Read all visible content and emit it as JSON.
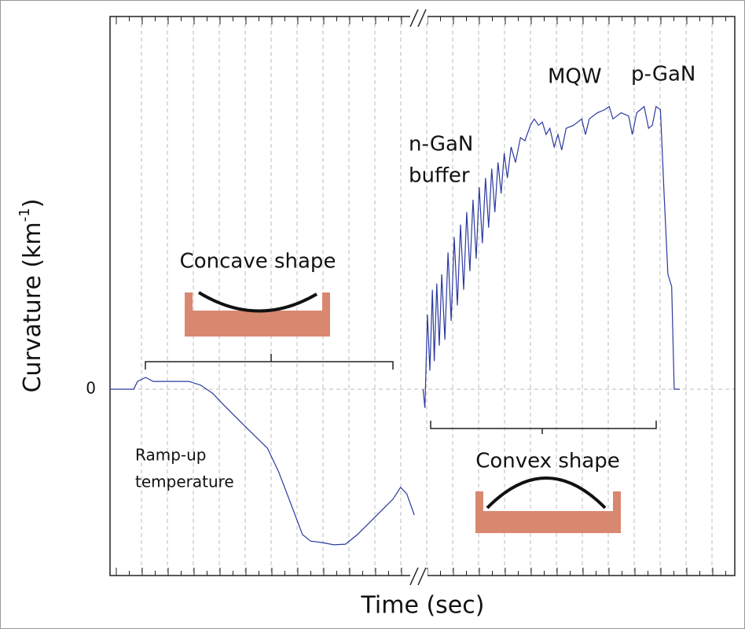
{
  "chart_data": {
    "type": "line",
    "xlabel": "Time (sec)",
    "ylabel": [
      "Curvature (km",
      "-1",
      ")"
    ],
    "xlim": [
      0,
      100
    ],
    "ylim": [
      -0.6,
      1.2
    ],
    "yticks": [
      0
    ],
    "grid": true,
    "series": [
      {
        "color": "#2b3a9e",
        "x": [
          0,
          3.8,
          4.4,
          5.7,
          6.9,
          8.8,
          10.7,
          12.6,
          14.5,
          16.4,
          18.2,
          20.1,
          22.6,
          25.2,
          27,
          28.9,
          30.8,
          32.1,
          34,
          35.8,
          37.7,
          39.6,
          41.5,
          43.4,
          45.3,
          46.5,
          47.5,
          48.7
        ],
        "values": [
          0,
          0,
          0.025,
          0.038,
          0.025,
          0.025,
          0.025,
          0.025,
          0.013,
          -0.013,
          -0.051,
          -0.089,
          -0.139,
          -0.19,
          -0.266,
          -0.367,
          -0.468,
          -0.489,
          -0.494,
          -0.501,
          -0.499,
          -0.468,
          -0.43,
          -0.392,
          -0.354,
          -0.316,
          -0.337,
          -0.405
        ]
      },
      {
        "color": "#2b3a9e",
        "x": [
          50.1,
          50.4,
          50.8,
          51.2,
          51.6,
          51.9,
          52.3,
          52.7,
          53.1,
          53.6,
          54.1,
          54.6,
          55.1,
          55.6,
          56.1,
          56.6,
          57.1,
          57.6,
          58.1,
          58.6,
          59.1,
          59.6,
          60.1,
          60.6,
          61.1,
          61.6,
          62.1,
          62.6,
          63.1,
          63.6,
          64.2,
          64.9,
          65.7,
          66.4,
          67.3,
          67.9,
          68.6,
          69.2,
          69.8,
          70.4,
          71.1,
          71.7,
          72.3,
          73.0,
          74.2,
          75.5,
          76.1,
          76.7,
          78.0,
          79.2,
          79.9,
          80.5,
          81.8,
          83.0,
          83.6,
          84.3,
          84.9,
          85.5,
          86.2,
          86.8,
          87.4,
          88.1,
          88.7,
          89.3,
          89.9,
          90.3,
          91.2
        ],
        "values": [
          0,
          -0.06,
          0.24,
          0.06,
          0.32,
          0.09,
          0.34,
          0.14,
          0.37,
          0.16,
          0.44,
          0.22,
          0.49,
          0.27,
          0.53,
          0.32,
          0.57,
          0.38,
          0.61,
          0.42,
          0.65,
          0.47,
          0.68,
          0.52,
          0.71,
          0.57,
          0.73,
          0.63,
          0.76,
          0.68,
          0.78,
          0.73,
          0.81,
          0.8,
          0.85,
          0.87,
          0.85,
          0.86,
          0.82,
          0.84,
          0.78,
          0.82,
          0.77,
          0.84,
          0.85,
          0.87,
          0.82,
          0.87,
          0.89,
          0.9,
          0.91,
          0.87,
          0.89,
          0.88,
          0.82,
          0.89,
          0.9,
          0.91,
          0.84,
          0.85,
          0.91,
          0.9,
          0.62,
          0.37,
          0.33,
          0,
          0
        ]
      }
    ],
    "annotations": {
      "concave": "Concave shape",
      "convex": "Convex shape",
      "n_gan": [
        "n-GaN",
        "buffer"
      ],
      "mqw": "MQW",
      "p_gan": "p-GaN",
      "ramp": [
        "Ramp-up",
        "temperature"
      ]
    }
  }
}
